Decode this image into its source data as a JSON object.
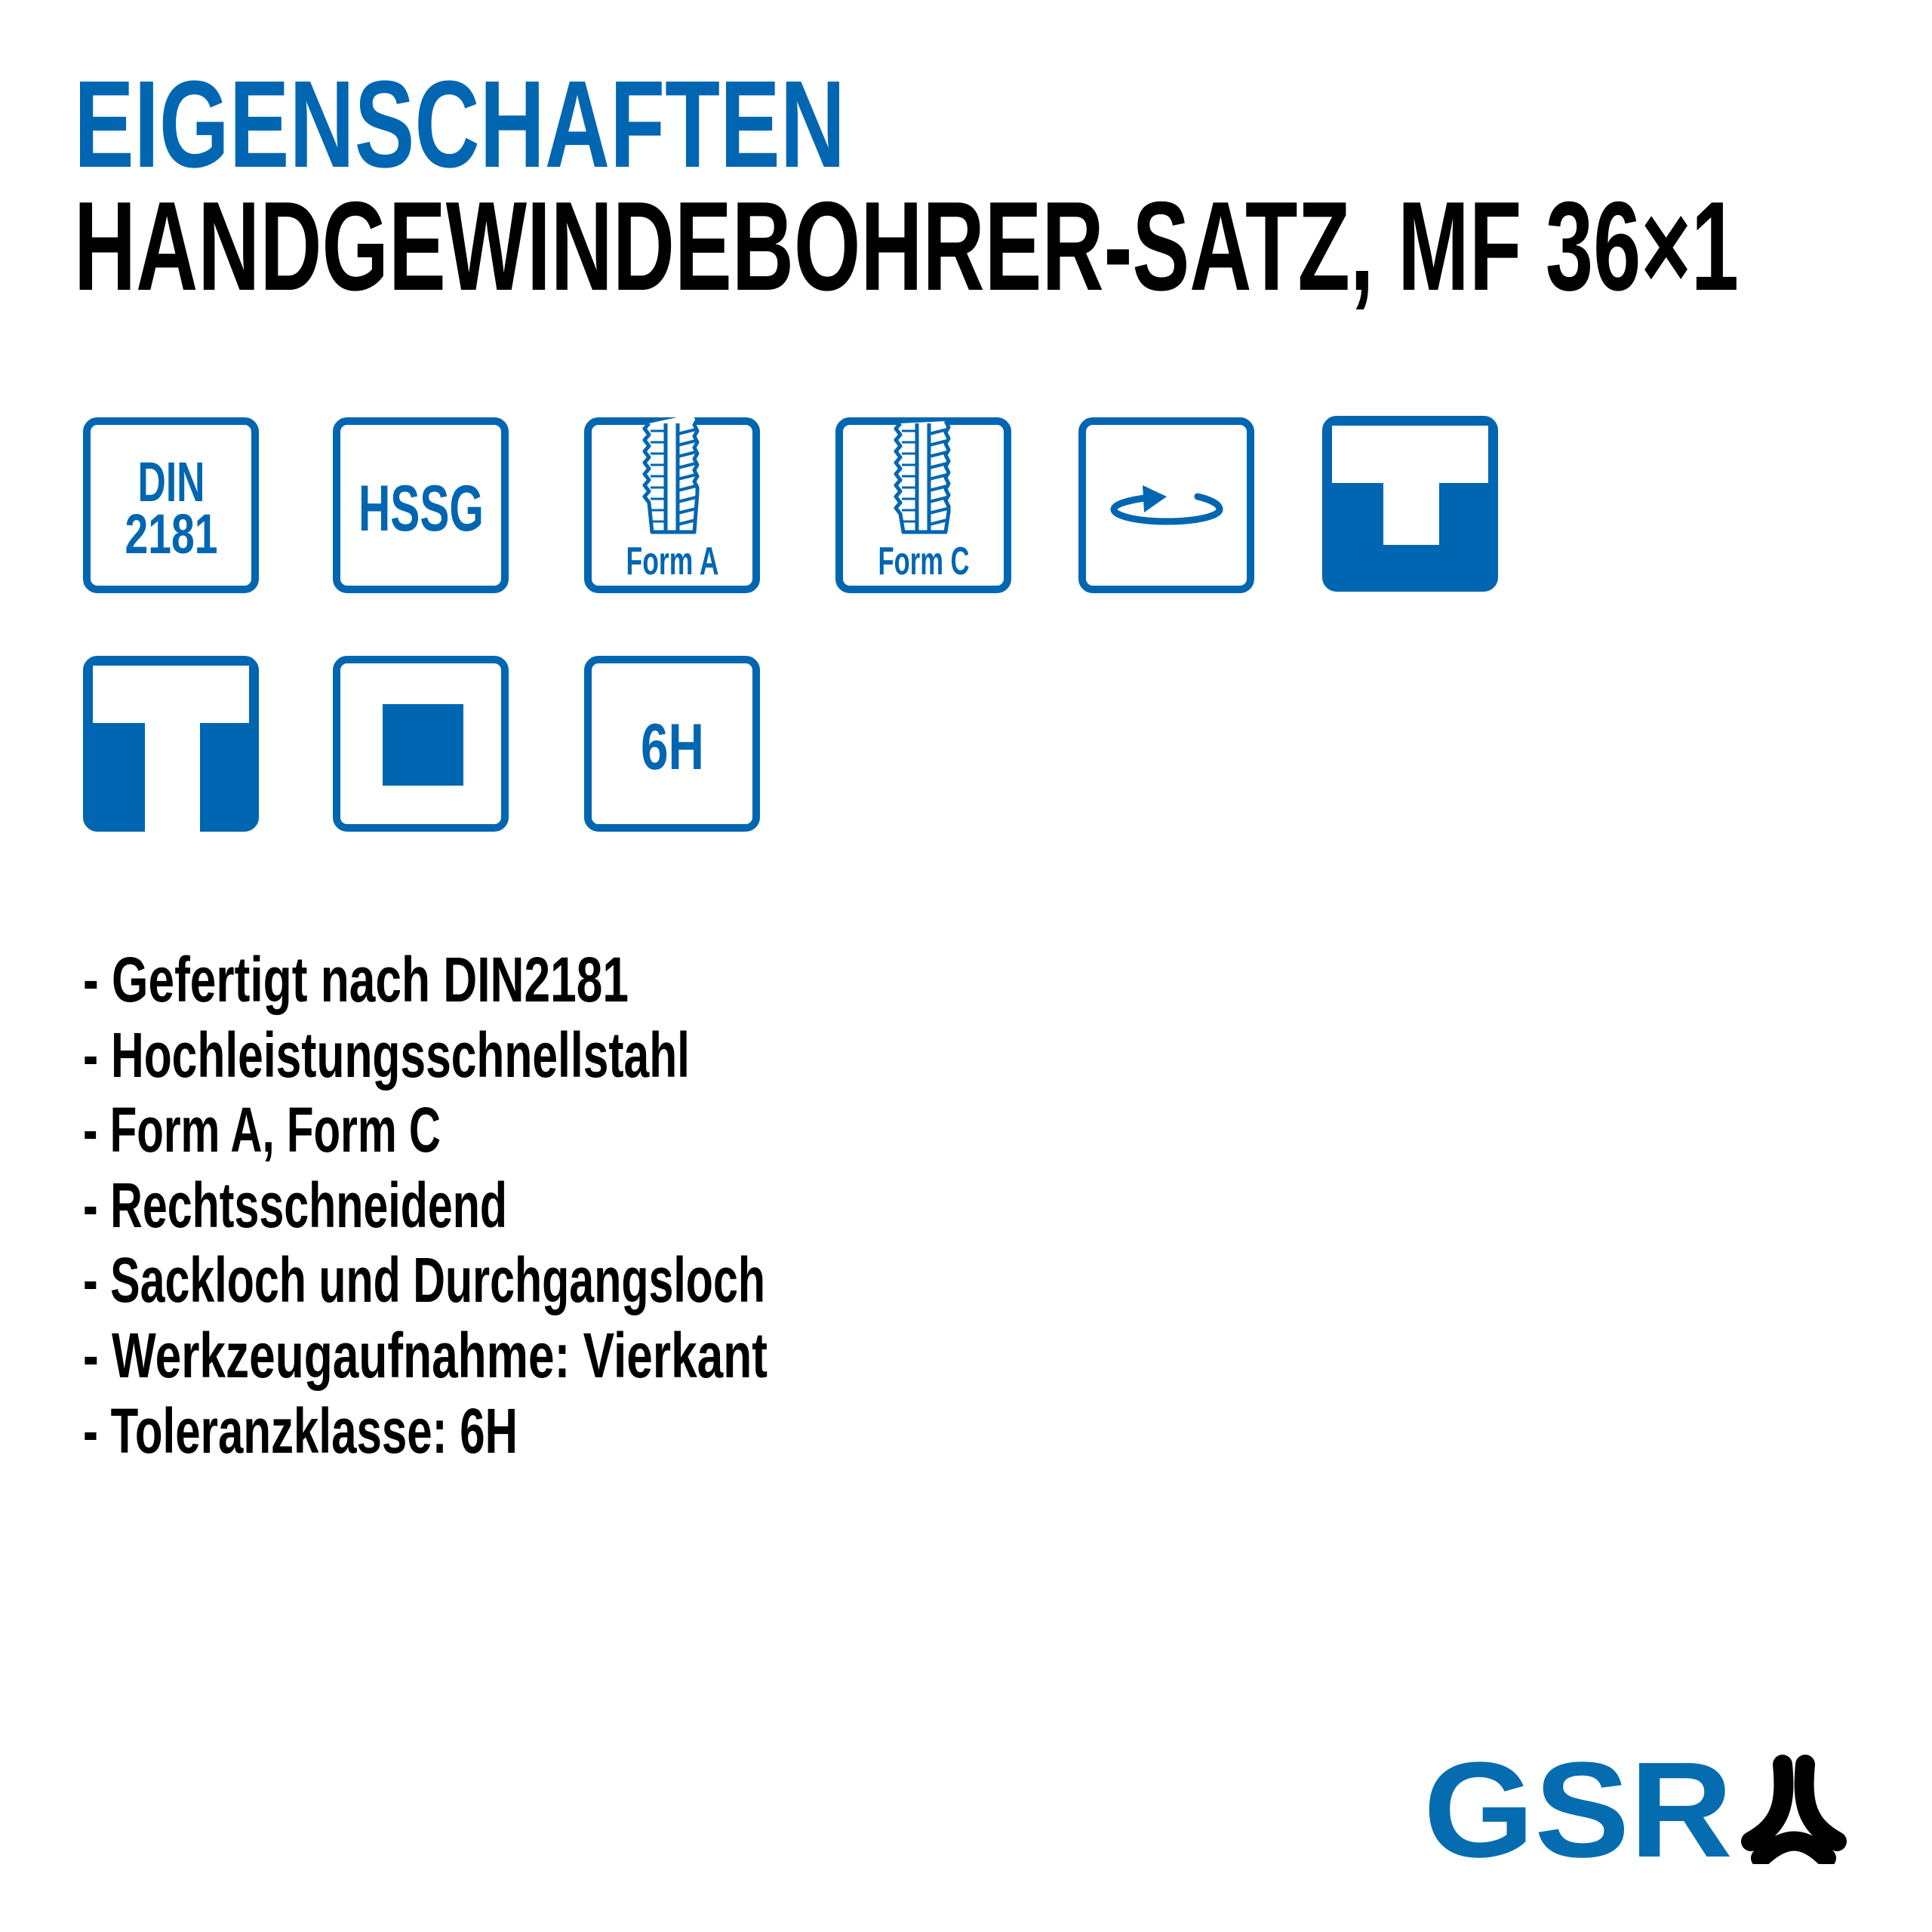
{
  "header": {
    "section_title": "EIGENSCHAFTEN",
    "product_title": "HANDGEWINDEBOHRER-SATZ, MF 36×1"
  },
  "icons": [
    {
      "name": "din-2181-icon",
      "line1": "DIN",
      "line2": "2181"
    },
    {
      "name": "hssg-icon",
      "label": "HSSG"
    },
    {
      "name": "form-a-tap-icon",
      "label": "Form A"
    },
    {
      "name": "form-c-tap-icon",
      "label": "Form C"
    },
    {
      "name": "right-hand-rotation-icon"
    },
    {
      "name": "blind-hole-icon"
    },
    {
      "name": "through-hole-icon"
    },
    {
      "name": "square-shank-icon"
    },
    {
      "name": "tolerance-6h-icon",
      "label": "6H"
    }
  ],
  "features": [
    "- Gefertigt nach DIN2181",
    "- Hochleistungsschnellstahl",
    "- Form A, Form C",
    "- Rechtsschneidend",
    "- Sackloch und Durchgangsloch",
    "- Werkzeugaufnahme: Vierkant",
    "- Toleranzklasse: 6H"
  ],
  "logo": {
    "text": "GSR"
  },
  "colors": {
    "accent": "#0066b1",
    "text": "#000000",
    "logo_mark": "#000000"
  }
}
